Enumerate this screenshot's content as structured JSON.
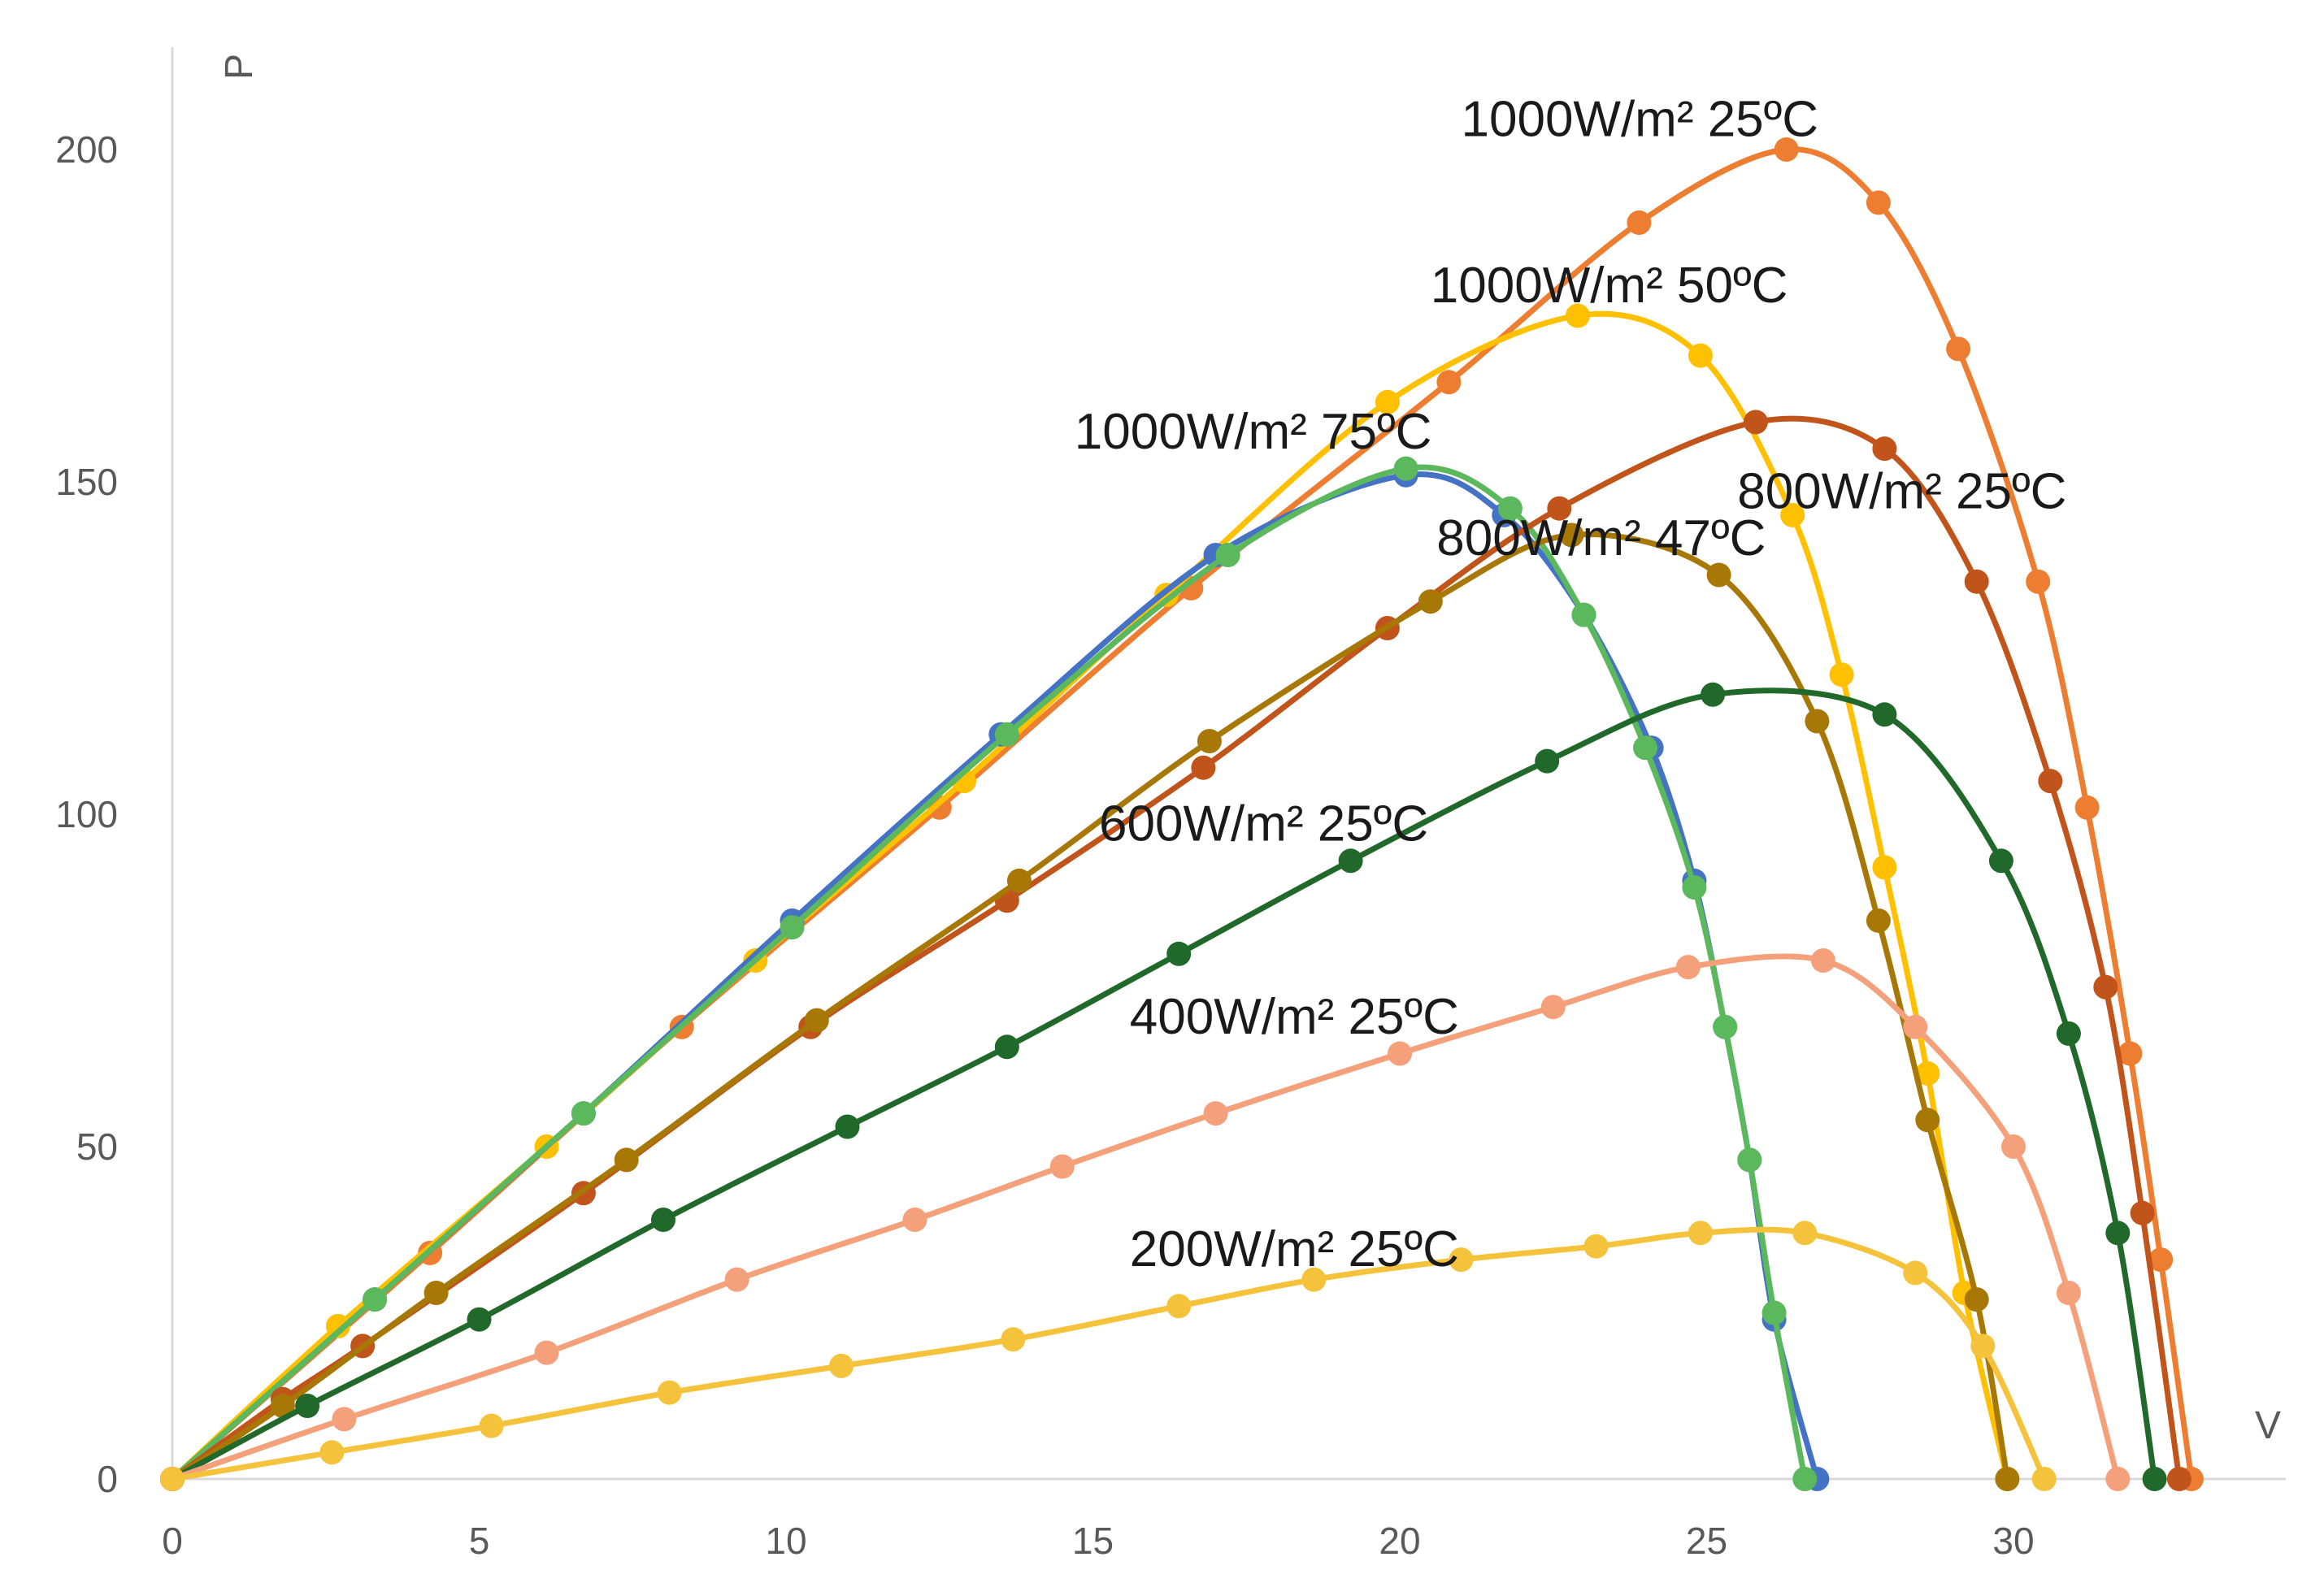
{
  "chart_data": {
    "type": "line",
    "title": "",
    "xlabel": "V",
    "ylabel": "P",
    "xlim": [
      0,
      34.5
    ],
    "ylim": [
      0,
      210
    ],
    "x_ticks": [
      0,
      5,
      10,
      15,
      20,
      25,
      30
    ],
    "y_ticks": [
      0,
      50,
      100,
      150,
      200
    ],
    "grid": false,
    "series": [
      {
        "name": "1000W/m² 25ºC",
        "color": "#ed7d31",
        "points": [
          [
            0,
            0
          ],
          [
            4.2,
            34
          ],
          [
            8.3,
            68
          ],
          [
            12.5,
            101
          ],
          [
            16.6,
            134
          ],
          [
            20.8,
            165
          ],
          [
            23.9,
            189
          ],
          [
            26.3,
            200
          ],
          [
            27.8,
            192
          ],
          [
            29.1,
            170
          ],
          [
            30.4,
            135
          ],
          [
            31.2,
            101
          ],
          [
            31.9,
            64
          ],
          [
            32.4,
            33
          ],
          [
            32.9,
            0
          ]
        ]
      },
      {
        "name": "1000W/m² 50ºC",
        "color": "#ffc000",
        "points": [
          [
            0,
            0
          ],
          [
            2.7,
            23
          ],
          [
            6.1,
            50
          ],
          [
            9.5,
            78
          ],
          [
            12.9,
            105
          ],
          [
            16.2,
            133
          ],
          [
            19.8,
            162
          ],
          [
            22.9,
            175
          ],
          [
            24.9,
            169
          ],
          [
            26.4,
            145
          ],
          [
            27.2,
            121
          ],
          [
            27.9,
            92
          ],
          [
            28.6,
            61
          ],
          [
            29.2,
            28
          ],
          [
            29.9,
            0
          ]
        ]
      },
      {
        "name": "1000W/m² 75ºC",
        "color": "#4472c4",
        "points": [
          [
            0,
            0
          ],
          [
            3.3,
            27
          ],
          [
            6.7,
            55
          ],
          [
            10.1,
            84
          ],
          [
            13.5,
            112
          ],
          [
            17.0,
            139
          ],
          [
            20.1,
            151
          ],
          [
            21.7,
            145
          ],
          [
            23.0,
            130
          ],
          [
            24.1,
            110
          ],
          [
            24.8,
            90
          ],
          [
            25.3,
            68
          ],
          [
            25.7,
            48
          ],
          [
            26.1,
            24
          ],
          [
            26.8,
            0
          ]
        ]
      },
      {
        "name": "1000W/m² 75ºC",
        "color": "#5cb85c",
        "points": [
          [
            0,
            0
          ],
          [
            3.3,
            27
          ],
          [
            6.7,
            55
          ],
          [
            10.1,
            83
          ],
          [
            13.6,
            112
          ],
          [
            17.2,
            139
          ],
          [
            20.1,
            152
          ],
          [
            21.8,
            146
          ],
          [
            23.0,
            130
          ],
          [
            24.0,
            110
          ],
          [
            24.8,
            89
          ],
          [
            25.3,
            68
          ],
          [
            25.7,
            48
          ],
          [
            26.1,
            25
          ],
          [
            26.6,
            0
          ]
        ]
      },
      {
        "name": "800W/m² 25ºC",
        "color": "#c0541a",
        "points": [
          [
            0,
            0
          ],
          [
            1.8,
            12
          ],
          [
            3.1,
            20
          ],
          [
            6.7,
            43
          ],
          [
            10.4,
            68
          ],
          [
            13.6,
            87
          ],
          [
            16.8,
            107
          ],
          [
            19.8,
            128
          ],
          [
            22.6,
            146
          ],
          [
            25.8,
            159
          ],
          [
            27.9,
            155
          ],
          [
            29.4,
            135
          ],
          [
            30.6,
            105
          ],
          [
            31.5,
            74
          ],
          [
            32.1,
            40
          ],
          [
            32.7,
            0
          ]
        ]
      },
      {
        "name": "800W/m² 47ºC",
        "color": "#a87807",
        "points": [
          [
            0,
            0
          ],
          [
            1.8,
            11
          ],
          [
            4.3,
            28
          ],
          [
            7.4,
            48
          ],
          [
            10.5,
            69
          ],
          [
            13.8,
            90
          ],
          [
            16.9,
            111
          ],
          [
            20.5,
            132
          ],
          [
            22.8,
            142
          ],
          [
            25.2,
            136
          ],
          [
            26.8,
            114
          ],
          [
            27.8,
            84
          ],
          [
            28.6,
            54
          ],
          [
            29.4,
            27
          ],
          [
            29.9,
            0
          ]
        ]
      },
      {
        "name": "600W/m² 25ºC",
        "color": "#21692a",
        "points": [
          [
            0,
            0
          ],
          [
            2.2,
            11
          ],
          [
            5.0,
            24
          ],
          [
            8.0,
            39
          ],
          [
            11.0,
            53
          ],
          [
            13.6,
            65
          ],
          [
            16.4,
            79
          ],
          [
            19.2,
            93
          ],
          [
            22.4,
            108
          ],
          [
            25.1,
            118
          ],
          [
            27.9,
            115
          ],
          [
            29.8,
            93
          ],
          [
            30.9,
            67
          ],
          [
            31.7,
            37
          ],
          [
            32.3,
            0
          ]
        ]
      },
      {
        "name": "400W/m² 25ºC",
        "color": "#f4a07a",
        "points": [
          [
            0,
            0
          ],
          [
            2.8,
            9
          ],
          [
            6.1,
            19
          ],
          [
            9.2,
            30
          ],
          [
            12.1,
            39
          ],
          [
            14.5,
            47
          ],
          [
            17.0,
            55
          ],
          [
            20.0,
            64
          ],
          [
            22.5,
            71
          ],
          [
            24.7,
            77
          ],
          [
            26.9,
            78
          ],
          [
            28.4,
            68
          ],
          [
            30.0,
            50
          ],
          [
            30.9,
            28
          ],
          [
            31.7,
            0
          ]
        ]
      },
      {
        "name": "200W/m² 25ºC",
        "color": "#f5c33b",
        "points": [
          [
            0,
            0
          ],
          [
            2.6,
            4
          ],
          [
            5.2,
            8
          ],
          [
            8.1,
            13
          ],
          [
            10.9,
            17
          ],
          [
            13.7,
            21
          ],
          [
            16.4,
            26
          ],
          [
            18.6,
            30
          ],
          [
            21.0,
            33
          ],
          [
            23.2,
            35
          ],
          [
            24.9,
            37
          ],
          [
            26.6,
            37
          ],
          [
            28.4,
            31
          ],
          [
            29.5,
            20
          ],
          [
            30.5,
            0
          ]
        ]
      }
    ],
    "annotations": [
      {
        "text": "1000W/m² 25ºC",
        "x": 21.0,
        "y": 202
      },
      {
        "text": "1000W/m² 50ºC",
        "x": 20.5,
        "y": 177
      },
      {
        "text": "1000W/m² 75ºC",
        "x": 14.7,
        "y": 155
      },
      {
        "text": "800W/m² 25ºC",
        "x": 25.5,
        "y": 146
      },
      {
        "text": "800W/m² 47ºC",
        "x": 20.6,
        "y": 139
      },
      {
        "text": "600W/m² 25ºC",
        "x": 15.1,
        "y": 96
      },
      {
        "text": "400W/m² 25ºC",
        "x": 15.6,
        "y": 67
      },
      {
        "text": "200W/m² 25ºC",
        "x": 15.6,
        "y": 32
      }
    ]
  }
}
